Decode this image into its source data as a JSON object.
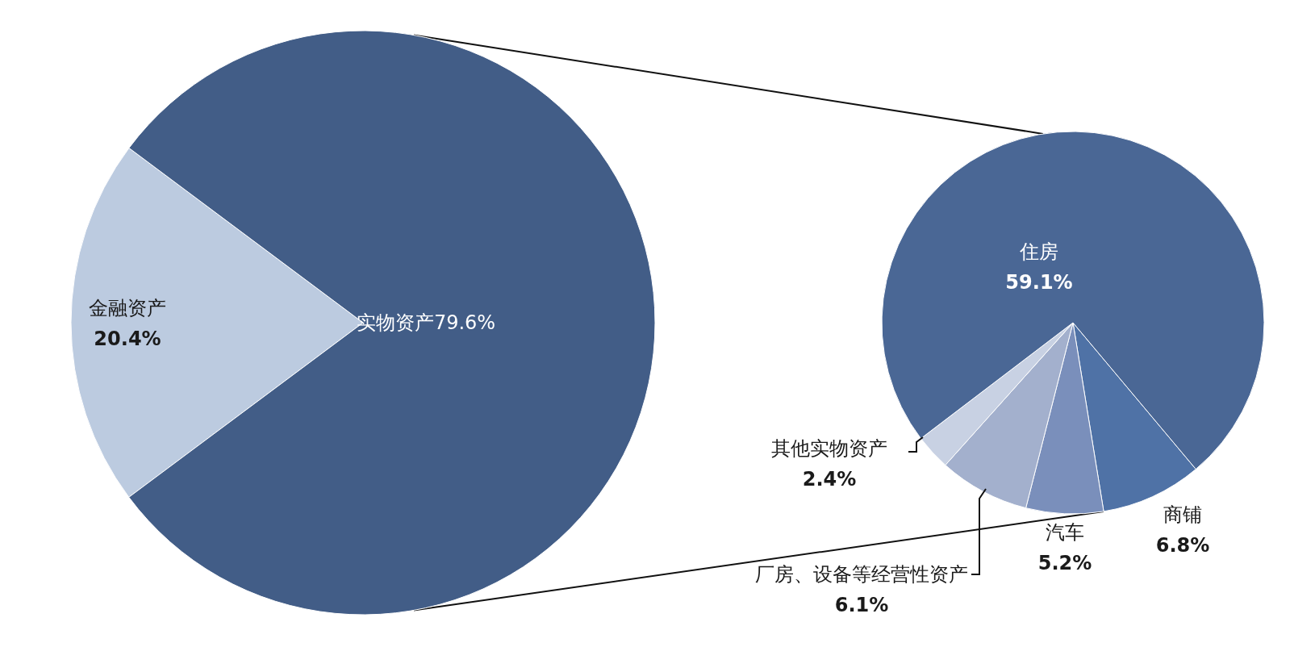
{
  "chart_data": [
    {
      "type": "pie",
      "categories": [
        "金融资产",
        "实物资产"
      ],
      "values": [
        20.4,
        79.6
      ],
      "colors": [
        "#bccbe0",
        "#425d87"
      ],
      "value_labels": [
        "20.4%",
        "79.6%"
      ]
    },
    {
      "type": "pie",
      "categories": [
        "商铺",
        "汽车",
        "厂房、设备等经营性资产",
        "其他实物资产",
        "住房"
      ],
      "values": [
        6.8,
        5.2,
        6.1,
        2.4,
        59.1
      ],
      "colors": [
        "#4f72a6",
        "#7a8fbb",
        "#a3b0cd",
        "#c8d1e3",
        "#4a6795"
      ],
      "value_labels": [
        "6.8%",
        "5.2%",
        "6.1%",
        "2.4%",
        "59.1%"
      ]
    }
  ]
}
